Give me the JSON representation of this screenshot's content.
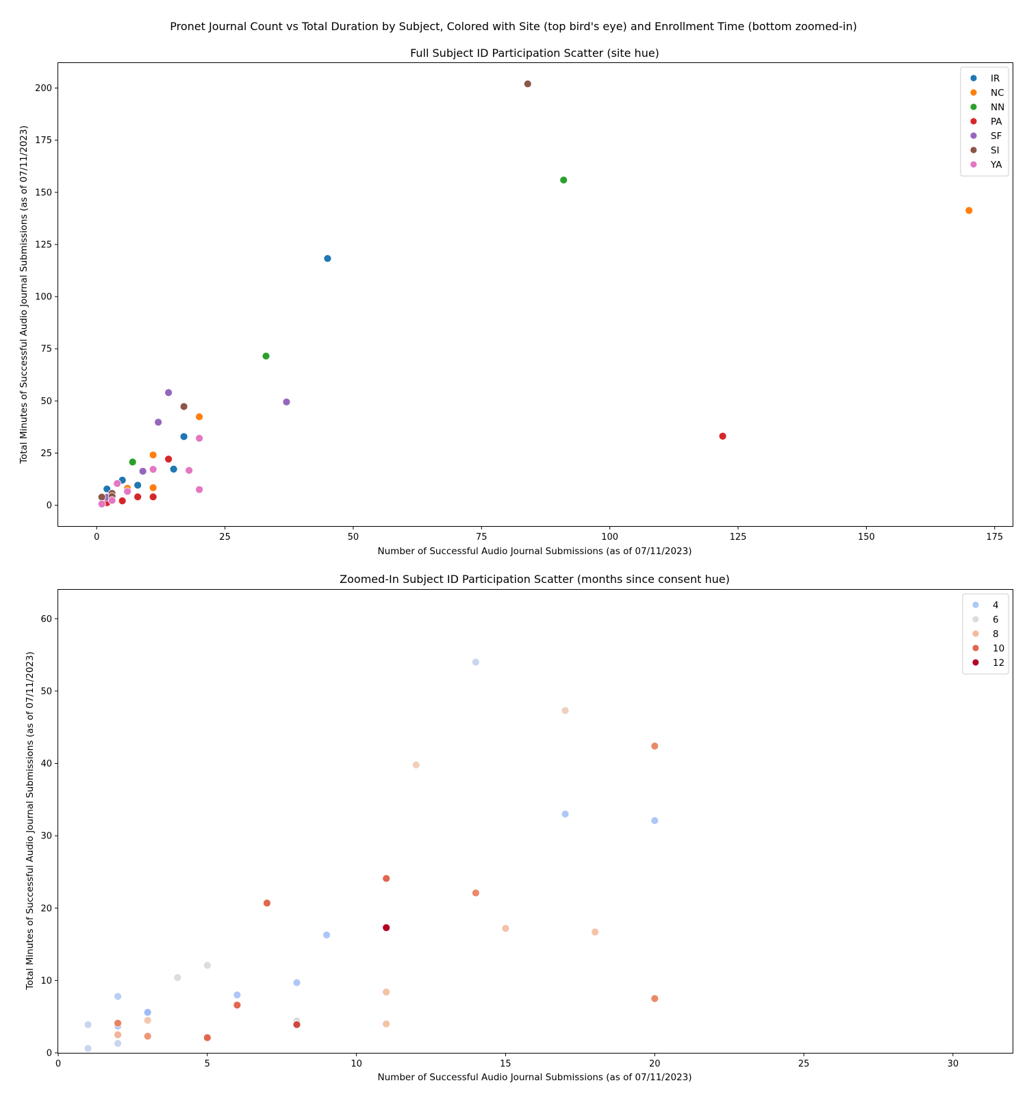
{
  "suptitle": "Pronet Journal Count vs Total Duration by Subject, Colored with Site (top bird's eye) and Enrollment Time (bottom zoomed-in)",
  "chart_data": [
    {
      "type": "scatter",
      "title": "Full Subject ID Participation Scatter (site hue)",
      "xlabel": "Number of Successful Audio Journal Submissions (as of 07/11/2023)",
      "ylabel": "Total Minutes of Successful Audio Journal Submissions (as of 07/11/2023)",
      "xlim": [
        -7.5,
        178.5
      ],
      "ylim": [
        -10,
        212
      ],
      "xticks": [
        0,
        25,
        50,
        75,
        100,
        125,
        150,
        175
      ],
      "yticks": [
        0,
        25,
        50,
        75,
        100,
        125,
        150,
        175,
        200
      ],
      "grid": false,
      "legend_position": "top-right",
      "series": [
        {
          "name": "IR",
          "color": "#1f77b4",
          "points": [
            [
              2,
              7.8
            ],
            [
              5,
              12
            ],
            [
              8,
              9.6
            ],
            [
              15,
              17.3
            ],
            [
              17,
              32.9
            ],
            [
              45,
              118.3
            ],
            [
              2,
              3.7
            ],
            [
              3,
              5.6
            ]
          ]
        },
        {
          "name": "NC",
          "color": "#ff7f0e",
          "points": [
            [
              6,
              8.1
            ],
            [
              11,
              24.1
            ],
            [
              11,
              8.4
            ],
            [
              20,
              42.4
            ],
            [
              170,
              141.3
            ]
          ]
        },
        {
          "name": "NN",
          "color": "#2ca02c",
          "points": [
            [
              7,
              20.7
            ],
            [
              33,
              71.5
            ],
            [
              91,
              155.9
            ]
          ]
        },
        {
          "name": "PA",
          "color": "#d62728",
          "points": [
            [
              2,
              1.2
            ],
            [
              5,
              2.1
            ],
            [
              8,
              4.0
            ],
            [
              11,
              4.0
            ],
            [
              14,
              22.1
            ],
            [
              122,
              33.1
            ]
          ]
        },
        {
          "name": "SF",
          "color": "#9467bd",
          "points": [
            [
              2,
              3.8
            ],
            [
              9,
              16.3
            ],
            [
              12,
              39.8
            ],
            [
              14,
              54
            ],
            [
              37,
              49.5
            ]
          ]
        },
        {
          "name": "SI",
          "color": "#8c564b",
          "points": [
            [
              1,
              3.9
            ],
            [
              3,
              5.7
            ],
            [
              3,
              4.2
            ],
            [
              17,
              47.3
            ],
            [
              84,
              202
            ]
          ]
        },
        {
          "name": "YA",
          "color": "#e377c2",
          "points": [
            [
              1,
              0.6
            ],
            [
              3,
              2.3
            ],
            [
              4,
              10.4
            ],
            [
              6,
              6.6
            ],
            [
              11,
              17.2
            ],
            [
              18,
              16.7
            ],
            [
              20,
              32.1
            ],
            [
              20,
              7.5
            ]
          ]
        }
      ]
    },
    {
      "type": "scatter",
      "title": "Zoomed-In Subject ID Participation Scatter (months since consent hue)",
      "xlabel": "Number of Successful Audio Journal Submissions (as of 07/11/2023)",
      "ylabel": "Total Minutes of Successful Audio Journal Submissions (as of 07/11/2023)",
      "xlim": [
        0,
        32
      ],
      "ylim": [
        0,
        64
      ],
      "xticks": [
        0,
        5,
        10,
        15,
        20,
        25,
        30
      ],
      "yticks": [
        0,
        10,
        20,
        30,
        40,
        50,
        60
      ],
      "grid": false,
      "legend_position": "top-right",
      "legend_title": "",
      "legend": [
        {
          "label": "4",
          "color": "#aec7f7"
        },
        {
          "label": "6",
          "color": "#dddcdb"
        },
        {
          "label": "8",
          "color": "#f4b99d"
        },
        {
          "label": "10",
          "color": "#e0674f"
        },
        {
          "label": "12",
          "color": "#b40426"
        }
      ],
      "points": [
        {
          "x": 1,
          "y": 3.9,
          "c": "#c8d6f0"
        },
        {
          "x": 1,
          "y": 0.6,
          "c": "#c8d6f0"
        },
        {
          "x": 2,
          "y": 7.8,
          "c": "#b8cef5"
        },
        {
          "x": 2,
          "y": 3.7,
          "c": "#aec7f7"
        },
        {
          "x": 2,
          "y": 4.1,
          "c": "#e8825f"
        },
        {
          "x": 2,
          "y": 2.5,
          "c": "#f0b59a"
        },
        {
          "x": 2,
          "y": 1.3,
          "c": "#c8d6f0"
        },
        {
          "x": 3,
          "y": 5.6,
          "c": "#9ebcf5"
        },
        {
          "x": 3,
          "y": 4.5,
          "c": "#f3c6b0"
        },
        {
          "x": 3,
          "y": 2.3,
          "c": "#ec9878"
        },
        {
          "x": 4,
          "y": 10.4,
          "c": "#dddcdb"
        },
        {
          "x": 5,
          "y": 12.1,
          "c": "#dddcdb"
        },
        {
          "x": 5,
          "y": 2.1,
          "c": "#e0674f"
        },
        {
          "x": 6,
          "y": 8.0,
          "c": "#aec7f7"
        },
        {
          "x": 6,
          "y": 6.6,
          "c": "#e0674f"
        },
        {
          "x": 7,
          "y": 20.7,
          "c": "#e0674f"
        },
        {
          "x": 8,
          "y": 9.7,
          "c": "#aec7f7"
        },
        {
          "x": 8,
          "y": 4.4,
          "c": "#dddcdb"
        },
        {
          "x": 8,
          "y": 3.9,
          "c": "#d0473d"
        },
        {
          "x": 9,
          "y": 16.3,
          "c": "#aec7f7"
        },
        {
          "x": 11,
          "y": 24.1,
          "c": "#e0674f"
        },
        {
          "x": 11,
          "y": 17.3,
          "c": "#b40426"
        },
        {
          "x": 11,
          "y": 8.4,
          "c": "#f4c2a7"
        },
        {
          "x": 11,
          "y": 4.0,
          "c": "#f4c2a7"
        },
        {
          "x": 12,
          "y": 39.8,
          "c": "#efd0bd"
        },
        {
          "x": 14,
          "y": 54.0,
          "c": "#c8d6f0"
        },
        {
          "x": 14,
          "y": 22.1,
          "c": "#ea8a68"
        },
        {
          "x": 15,
          "y": 17.2,
          "c": "#f4c2a7"
        },
        {
          "x": 17,
          "y": 47.3,
          "c": "#efd0bd"
        },
        {
          "x": 17,
          "y": 33.0,
          "c": "#aec7f7"
        },
        {
          "x": 18,
          "y": 16.7,
          "c": "#f4c2a7"
        },
        {
          "x": 20,
          "y": 42.4,
          "c": "#ea8a68"
        },
        {
          "x": 20,
          "y": 32.1,
          "c": "#aec7f7"
        },
        {
          "x": 20,
          "y": 7.5,
          "c": "#ea8a68"
        }
      ]
    }
  ]
}
